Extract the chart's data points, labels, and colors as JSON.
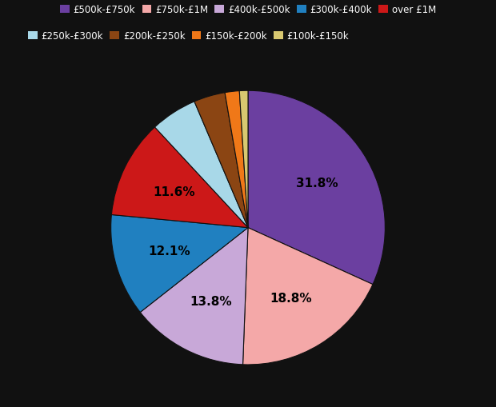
{
  "labels": [
    "£500k-£750k",
    "£750k-£1M",
    "£400k-£500k",
    "£300k-£400k",
    "over £1M",
    "£250k-£300k",
    "£200k-£250k",
    "£150k-£200k",
    "£100k-£150k"
  ],
  "values": [
    31.8,
    18.8,
    13.8,
    12.1,
    11.6,
    5.5,
    3.7,
    1.7,
    1.0
  ],
  "colors": [
    "#6b3fa0",
    "#f4a8a8",
    "#c8a8d8",
    "#2080c0",
    "#cc1818",
    "#a8d8e8",
    "#8b4513",
    "#f07818",
    "#d8c870"
  ],
  "pct_labels": [
    "31.8%",
    "18.8%",
    "13.8%",
    "12.1%",
    "11.6%",
    "",
    "",
    "",
    ""
  ],
  "background_color": "#111111",
  "text_color": "#000000",
  "legend_text_color": "#ffffff",
  "startangle": 90,
  "legend_row1": [
    "£500k-£750k",
    "£750k-£1M",
    "£400k-£500k",
    "£300k-£400k",
    "over £1M"
  ],
  "legend_row2": [
    "£250k-£300k",
    "£200k-£250k",
    "£150k-£200k",
    "£100k-£150k"
  ]
}
